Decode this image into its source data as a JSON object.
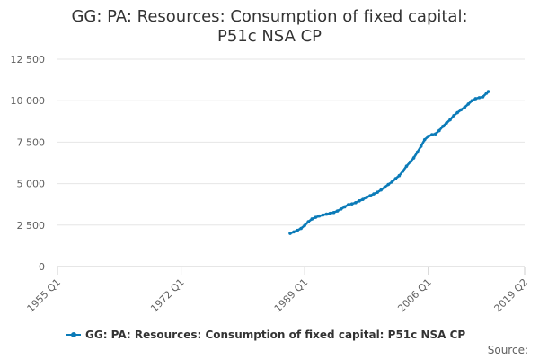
{
  "chart_data": {
    "type": "line",
    "title": "GG: PA: Resources: Consumption of fixed capital: P51c NSA CP",
    "xlabel": "",
    "ylabel": "",
    "ylim": [
      0,
      12500
    ],
    "xlim": [
      "1955 Q1",
      "2019 Q2"
    ],
    "yticks": [
      "0",
      "2 500",
      "5 000",
      "7 500",
      "10 000",
      "12 500"
    ],
    "xticks": [
      "1955 Q1",
      "1972 Q1",
      "1989 Q1",
      "2006 Q1",
      "2019 Q2"
    ],
    "grid": true,
    "legend": "bottom",
    "series": [
      {
        "name": "GG: PA: Resources: Consumption of fixed capital: P51c NSA CP",
        "color": "#0b7bb8",
        "points": [
          [
            "1987 Q1",
            2000
          ],
          [
            "1987 Q3",
            2090
          ],
          [
            "1988 Q1",
            2180
          ],
          [
            "1988 Q3",
            2300
          ],
          [
            "1989 Q1",
            2480
          ],
          [
            "1989 Q3",
            2700
          ],
          [
            "1990 Q1",
            2870
          ],
          [
            "1990 Q3",
            2970
          ],
          [
            "1991 Q1",
            3050
          ],
          [
            "1991 Q3",
            3110
          ],
          [
            "1992 Q1",
            3160
          ],
          [
            "1992 Q3",
            3210
          ],
          [
            "1993 Q1",
            3260
          ],
          [
            "1993 Q3",
            3350
          ],
          [
            "1994 Q1",
            3470
          ],
          [
            "1994 Q3",
            3600
          ],
          [
            "1995 Q1",
            3730
          ],
          [
            "1995 Q3",
            3780
          ],
          [
            "1996 Q1",
            3850
          ],
          [
            "1996 Q3",
            3960
          ],
          [
            "1997 Q1",
            4050
          ],
          [
            "1997 Q3",
            4170
          ],
          [
            "1998 Q1",
            4270
          ],
          [
            "1998 Q3",
            4380
          ],
          [
            "1999 Q1",
            4480
          ],
          [
            "1999 Q3",
            4620
          ],
          [
            "2000 Q1",
            4780
          ],
          [
            "2000 Q3",
            4950
          ],
          [
            "2001 Q1",
            5100
          ],
          [
            "2001 Q3",
            5300
          ],
          [
            "2002 Q1",
            5480
          ],
          [
            "2002 Q3",
            5750
          ],
          [
            "2003 Q1",
            6050
          ],
          [
            "2003 Q3",
            6300
          ],
          [
            "2004 Q1",
            6550
          ],
          [
            "2004 Q3",
            6900
          ],
          [
            "2005 Q1",
            7250
          ],
          [
            "2005 Q3",
            7650
          ],
          [
            "2006 Q1",
            7850
          ],
          [
            "2006 Q3",
            7950
          ],
          [
            "2007 Q1",
            8000
          ],
          [
            "2007 Q3",
            8200
          ],
          [
            "2008 Q1",
            8450
          ],
          [
            "2008 Q3",
            8650
          ],
          [
            "2009 Q1",
            8850
          ],
          [
            "2009 Q3",
            9100
          ],
          [
            "2010 Q1",
            9280
          ],
          [
            "2010 Q3",
            9450
          ],
          [
            "2011 Q1",
            9600
          ],
          [
            "2011 Q3",
            9800
          ],
          [
            "2012 Q1",
            10000
          ],
          [
            "2012 Q3",
            10120
          ],
          [
            "2013 Q1",
            10180
          ],
          [
            "2013 Q3",
            10230
          ],
          [
            "2014 Q1",
            10450
          ],
          [
            "2014 Q2",
            10550
          ]
        ]
      }
    ],
    "source_label": "Source:"
  }
}
